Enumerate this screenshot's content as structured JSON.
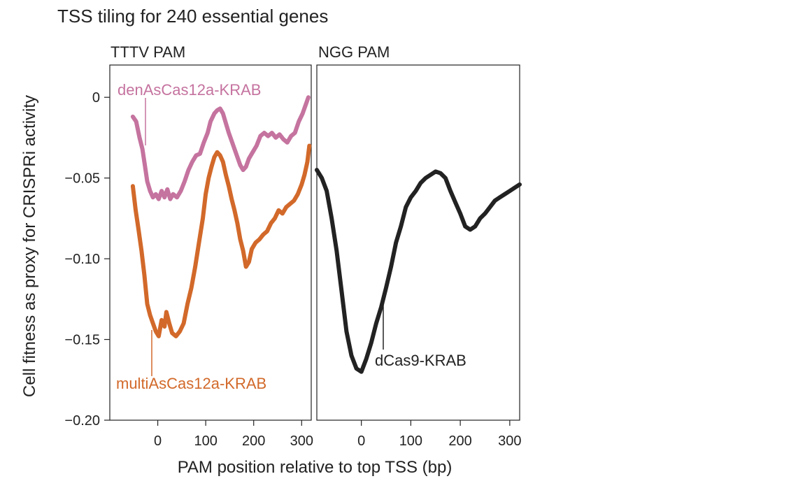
{
  "chart_data": {
    "type": "line",
    "title": "TSS tiling for 240 essential genes",
    "xlabel": "PAM position relative to top TSS (bp)",
    "ylabel": "Cell fitness as proxy for CRISPRi activity",
    "ylim": [
      -0.2,
      0.02
    ],
    "yticks": [
      0,
      -0.05,
      -0.1,
      -0.15,
      -0.2
    ],
    "ytick_labels": [
      "0",
      "−0.05",
      "−0.10",
      "−0.15",
      "−0.20"
    ],
    "grid": false,
    "panels": [
      {
        "title": "TTTV PAM",
        "xlim": [
          -100,
          320
        ],
        "xticks": [
          0,
          100,
          200,
          300
        ],
        "xtick_labels": [
          "0",
          "100",
          "200",
          "300"
        ],
        "series": [
          {
            "name": "denAsCas12a-KRAB",
            "color": "#c5739f",
            "label_color": "#c5739f",
            "points": [
              [
                -52,
                -0.012
              ],
              [
                -45,
                -0.015
              ],
              [
                -38,
                -0.025
              ],
              [
                -32,
                -0.032
              ],
              [
                -27,
                -0.042
              ],
              [
                -22,
                -0.052
              ],
              [
                -16,
                -0.058
              ],
              [
                -10,
                -0.062
              ],
              [
                -4,
                -0.06
              ],
              [
                2,
                -0.063
              ],
              [
                8,
                -0.058
              ],
              [
                14,
                -0.062
              ],
              [
                20,
                -0.057
              ],
              [
                26,
                -0.063
              ],
              [
                32,
                -0.06
              ],
              [
                40,
                -0.062
              ],
              [
                48,
                -0.058
              ],
              [
                56,
                -0.052
              ],
              [
                64,
                -0.045
              ],
              [
                72,
                -0.04
              ],
              [
                80,
                -0.036
              ],
              [
                88,
                -0.035
              ],
              [
                96,
                -0.028
              ],
              [
                104,
                -0.022
              ],
              [
                110,
                -0.015
              ],
              [
                118,
                -0.01
              ],
              [
                124,
                -0.008
              ],
              [
                130,
                -0.007
              ],
              [
                136,
                -0.01
              ],
              [
                142,
                -0.016
              ],
              [
                148,
                -0.022
              ],
              [
                154,
                -0.027
              ],
              [
                160,
                -0.032
              ],
              [
                166,
                -0.037
              ],
              [
                172,
                -0.042
              ],
              [
                178,
                -0.045
              ],
              [
                184,
                -0.043
              ],
              [
                190,
                -0.038
              ],
              [
                198,
                -0.034
              ],
              [
                206,
                -0.03
              ],
              [
                214,
                -0.024
              ],
              [
                222,
                -0.022
              ],
              [
                230,
                -0.024
              ],
              [
                238,
                -0.022
              ],
              [
                246,
                -0.025
              ],
              [
                254,
                -0.023
              ],
              [
                262,
                -0.026
              ],
              [
                270,
                -0.028
              ],
              [
                278,
                -0.024
              ],
              [
                286,
                -0.022
              ],
              [
                294,
                -0.015
              ],
              [
                302,
                -0.01
              ],
              [
                308,
                -0.005
              ],
              [
                314,
                0.0
              ]
            ]
          },
          {
            "name": "multiAsCas12a-KRAB",
            "color": "#d2692a",
            "label_color": "#d2692a",
            "points": [
              [
                -52,
                -0.055
              ],
              [
                -46,
                -0.07
              ],
              [
                -40,
                -0.082
              ],
              [
                -34,
                -0.095
              ],
              [
                -28,
                -0.11
              ],
              [
                -22,
                -0.128
              ],
              [
                -16,
                -0.135
              ],
              [
                -10,
                -0.14
              ],
              [
                -4,
                -0.145
              ],
              [
                2,
                -0.148
              ],
              [
                8,
                -0.138
              ],
              [
                14,
                -0.142
              ],
              [
                18,
                -0.133
              ],
              [
                24,
                -0.14
              ],
              [
                30,
                -0.146
              ],
              [
                38,
                -0.148
              ],
              [
                46,
                -0.145
              ],
              [
                54,
                -0.14
              ],
              [
                62,
                -0.128
              ],
              [
                70,
                -0.118
              ],
              [
                78,
                -0.105
              ],
              [
                86,
                -0.09
              ],
              [
                94,
                -0.075
              ],
              [
                100,
                -0.06
              ],
              [
                106,
                -0.05
              ],
              [
                112,
                -0.043
              ],
              [
                118,
                -0.037
              ],
              [
                124,
                -0.034
              ],
              [
                130,
                -0.036
              ],
              [
                136,
                -0.04
              ],
              [
                142,
                -0.048
              ],
              [
                148,
                -0.055
              ],
              [
                154,
                -0.063
              ],
              [
                160,
                -0.07
              ],
              [
                166,
                -0.078
              ],
              [
                172,
                -0.088
              ],
              [
                178,
                -0.095
              ],
              [
                184,
                -0.105
              ],
              [
                190,
                -0.102
              ],
              [
                196,
                -0.094
              ],
              [
                204,
                -0.09
              ],
              [
                212,
                -0.088
              ],
              [
                220,
                -0.085
              ],
              [
                228,
                -0.083
              ],
              [
                236,
                -0.078
              ],
              [
                244,
                -0.075
              ],
              [
                252,
                -0.07
              ],
              [
                260,
                -0.072
              ],
              [
                268,
                -0.068
              ],
              [
                276,
                -0.066
              ],
              [
                284,
                -0.064
              ],
              [
                292,
                -0.06
              ],
              [
                300,
                -0.054
              ],
              [
                306,
                -0.048
              ],
              [
                312,
                -0.04
              ],
              [
                316,
                -0.03
              ]
            ]
          }
        ]
      },
      {
        "title": "NGG PAM",
        "xlim": [
          -90,
          320
        ],
        "xticks": [
          0,
          100,
          200,
          300
        ],
        "xtick_labels": [
          "0",
          "100",
          "200",
          "300"
        ],
        "series": [
          {
            "name": "dCas9-KRAB",
            "color": "#222222",
            "label_color": "#222222",
            "points": [
              [
                -90,
                -0.045
              ],
              [
                -80,
                -0.05
              ],
              [
                -70,
                -0.058
              ],
              [
                -60,
                -0.075
              ],
              [
                -50,
                -0.095
              ],
              [
                -40,
                -0.12
              ],
              [
                -30,
                -0.145
              ],
              [
                -20,
                -0.16
              ],
              [
                -10,
                -0.168
              ],
              [
                0,
                -0.17
              ],
              [
                10,
                -0.162
              ],
              [
                20,
                -0.152
              ],
              [
                30,
                -0.14
              ],
              [
                40,
                -0.13
              ],
              [
                50,
                -0.118
              ],
              [
                60,
                -0.105
              ],
              [
                70,
                -0.09
              ],
              [
                80,
                -0.08
              ],
              [
                90,
                -0.068
              ],
              [
                100,
                -0.062
              ],
              [
                110,
                -0.058
              ],
              [
                120,
                -0.053
              ],
              [
                130,
                -0.05
              ],
              [
                140,
                -0.048
              ],
              [
                150,
                -0.046
              ],
              [
                160,
                -0.047
              ],
              [
                170,
                -0.05
              ],
              [
                180,
                -0.058
              ],
              [
                190,
                -0.065
              ],
              [
                200,
                -0.072
              ],
              [
                210,
                -0.08
              ],
              [
                220,
                -0.082
              ],
              [
                230,
                -0.08
              ],
              [
                240,
                -0.075
              ],
              [
                250,
                -0.072
              ],
              [
                260,
                -0.068
              ],
              [
                270,
                -0.064
              ],
              [
                280,
                -0.062
              ],
              [
                290,
                -0.06
              ],
              [
                300,
                -0.058
              ],
              [
                310,
                -0.056
              ],
              [
                320,
                -0.054
              ]
            ]
          }
        ]
      }
    ]
  }
}
